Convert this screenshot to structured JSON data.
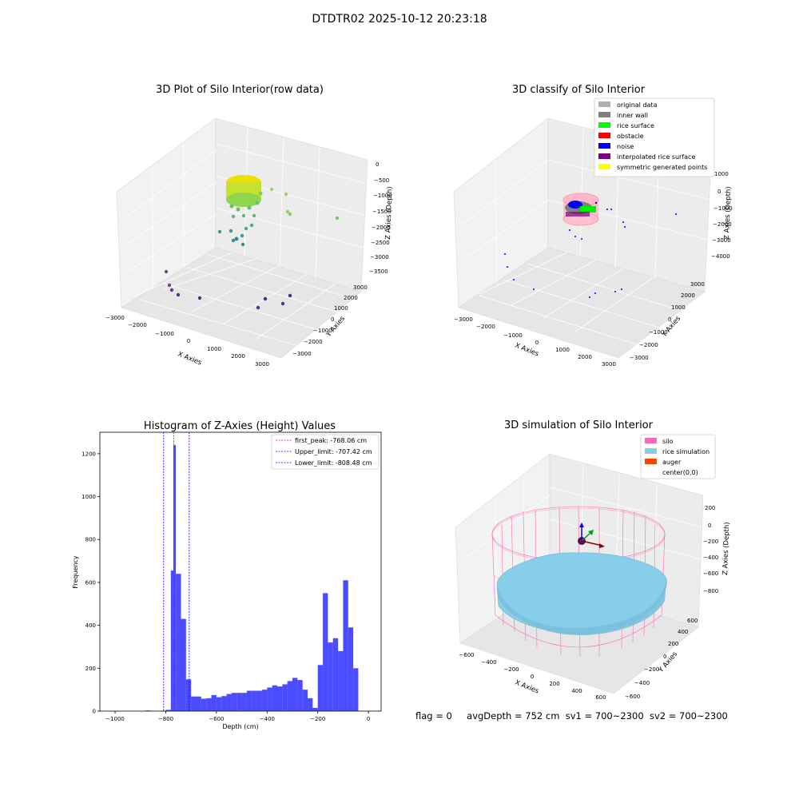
{
  "figure": {
    "title": "DTDTR02 2025-10-12 20:23:18"
  },
  "status": {
    "flag": "flag = 0",
    "avg_depth": "avgDepth = 752 cm",
    "sv1": "sv1 = 700~2300",
    "sv2": "sv2 = 700~2300"
  },
  "panels": [
    {
      "title": "3D Plot of Silo Interior(row data)",
      "xlabel": "X Axies",
      "ylabel": "Y Axies",
      "zlabel": "Z Axies (Depth)",
      "x_ticks": [
        "−3000",
        "−2000",
        "−1000",
        "0",
        "1000",
        "2000",
        "3000"
      ],
      "y_ticks": [
        "−3000",
        "−2000",
        "−1000",
        "0",
        "1000",
        "2000",
        "3000"
      ],
      "z_ticks": [
        "0",
        "−500",
        "−1000",
        "−1500",
        "−2000",
        "−2500",
        "−3000",
        "−3500"
      ]
    },
    {
      "title": "3D classify of Silo Interior",
      "xlabel": "X Axies",
      "ylabel": "Y Axies",
      "zlabel": "Z Axies (Depth)",
      "x_ticks": [
        "−3000",
        "−2000",
        "−1000",
        "0",
        "1000",
        "2000",
        "3000"
      ],
      "y_ticks": [
        "−3000",
        "−2000",
        "−1000",
        "0",
        "1000",
        "2000",
        "3000"
      ],
      "z_ticks": [
        "1000",
        "0",
        "−1000",
        "−2000",
        "−3000",
        "−4000"
      ],
      "legend": [
        {
          "label": "original data",
          "color": "#b0b0b0"
        },
        {
          "label": "inner wall",
          "color": "#808080"
        },
        {
          "label": "rice surface",
          "color": "#00ff00"
        },
        {
          "label": "obstacle",
          "color": "#ff0000"
        },
        {
          "label": "noise",
          "color": "#0000ff"
        },
        {
          "label": "interpolated rice surface",
          "color": "#800080"
        },
        {
          "label": "symmetric generated points",
          "color": "#ffff00"
        }
      ]
    },
    {
      "title": "3D simulation of Silo Interior",
      "xlabel": "X Axies",
      "ylabel": "Y Axies",
      "zlabel": "Z Axies (Depth)",
      "x_ticks": [
        "−600",
        "−400",
        "−200",
        "0",
        "200",
        "400",
        "600"
      ],
      "y_ticks": [
        "−600",
        "−400",
        "−200",
        "0",
        "200",
        "400",
        "600"
      ],
      "z_ticks": [
        "200",
        "0",
        "−200",
        "−400",
        "−600",
        "−800"
      ],
      "legend": [
        {
          "label": "silo",
          "color": "#ff69b4"
        },
        {
          "label": "rice simulation",
          "color": "#87ceeb"
        },
        {
          "label": "auger",
          "color": "#ff4500"
        },
        {
          "label": "center(0,0)",
          "color": ""
        }
      ]
    }
  ],
  "chart_data": {
    "type": "bar",
    "title": "Histogram of Z-Axies (Height) Values",
    "xlabel": "Depth (cm)",
    "ylabel": "Frequency",
    "xlim": [
      -1060,
      50
    ],
    "ylim": [
      0,
      1300
    ],
    "x_ticks": [
      -1000,
      -800,
      -600,
      -400,
      -200,
      0
    ],
    "y_ticks": [
      0,
      200,
      400,
      600,
      800,
      1000,
      1200
    ],
    "bar_color": "#0000ff",
    "bin_width": 20,
    "bin_starts": [
      -880,
      -820,
      -800,
      -780,
      -770,
      -760,
      -740,
      -720,
      -700,
      -680,
      -660,
      -640,
      -620,
      -600,
      -580,
      -560,
      -540,
      -520,
      -500,
      -480,
      -460,
      -440,
      -420,
      -400,
      -380,
      -360,
      -340,
      -320,
      -300,
      -280,
      -260,
      -240,
      -220,
      -200,
      -180,
      -160,
      -140,
      -120,
      -100,
      -80,
      -60,
      -40,
      -20
    ],
    "bin_widths": [
      20,
      20,
      20,
      10,
      10,
      20,
      20,
      20,
      20,
      20,
      20,
      20,
      20,
      20,
      20,
      20,
      20,
      20,
      20,
      20,
      20,
      20,
      20,
      20,
      20,
      20,
      20,
      20,
      20,
      20,
      20,
      20,
      20,
      20,
      20,
      20,
      20,
      20,
      20,
      20,
      20,
      20,
      20
    ],
    "values": [
      3,
      2,
      6,
      655,
      1240,
      640,
      430,
      148,
      68,
      68,
      58,
      60,
      75,
      65,
      70,
      80,
      85,
      85,
      85,
      95,
      95,
      95,
      100,
      110,
      120,
      115,
      125,
      140,
      155,
      145,
      100,
      60,
      15,
      215,
      550,
      320,
      340,
      280,
      610,
      390,
      200,
      0,
      0
    ],
    "reference_lines": [
      {
        "label": "first_peak: -768.06 cm",
        "value": -768.06,
        "color": "#ff0000"
      },
      {
        "label": "Upper_limit: -707.42 cm",
        "value": -707.42,
        "color": "#0000ff"
      },
      {
        "label": "Lower_limit: -808.48 cm",
        "value": -808.48,
        "color": "#0000ff"
      }
    ],
    "legend_position": "upper right"
  }
}
